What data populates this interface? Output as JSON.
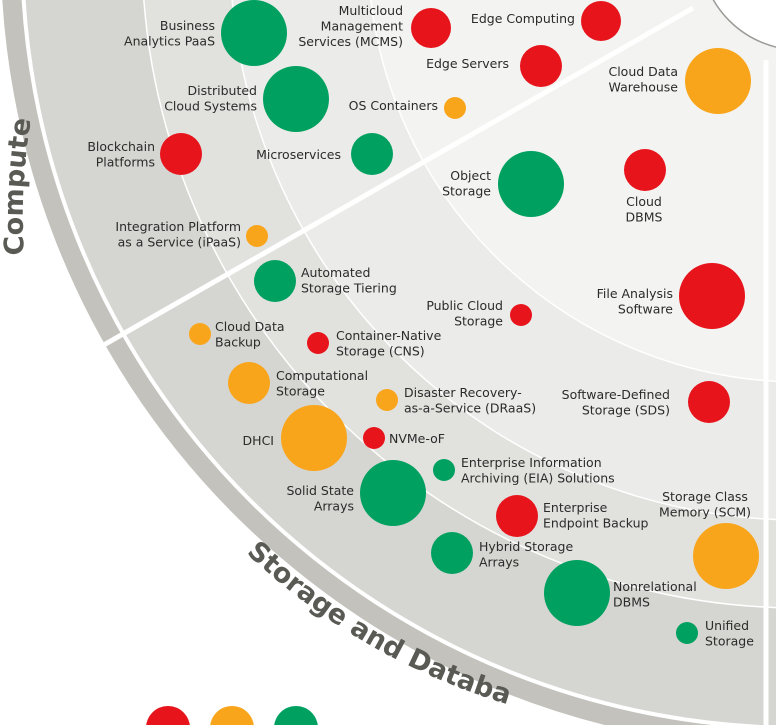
{
  "colors": {
    "red": "#e8141c",
    "orange": "#f9a51b",
    "green": "#00a160",
    "ring_outer": "#c3c2bd",
    "ring_2": "#d5d5d1",
    "ring_3": "#e1e1de",
    "ring_4": "#ebebe9",
    "ring_5": "#f3f3f1",
    "divider": "#ffffff"
  },
  "sectors": {
    "storage": "Storage and Database",
    "compute": "Compute"
  },
  "technologies": [
    {
      "id": "business-analytics-paas",
      "lines": [
        "Business",
        "Analytics PaaS"
      ],
      "color": "green"
    },
    {
      "id": "multicloud-management-services",
      "lines": [
        "Multicloud",
        "Management",
        "Services (MCMS)"
      ],
      "color": "red"
    },
    {
      "id": "edge-computing",
      "lines": [
        "Edge Computing"
      ],
      "color": "red"
    },
    {
      "id": "edge-servers",
      "lines": [
        "Edge Servers"
      ],
      "color": "red"
    },
    {
      "id": "cloud-data-warehouse",
      "lines": [
        "Cloud Data",
        "Warehouse"
      ],
      "color": "orange"
    },
    {
      "id": "distributed-cloud-systems",
      "lines": [
        "Distributed",
        "Cloud Systems"
      ],
      "color": "green"
    },
    {
      "id": "os-containers",
      "lines": [
        "OS Containers"
      ],
      "color": "orange"
    },
    {
      "id": "blockchain-platforms",
      "lines": [
        "Blockchain",
        "Platforms"
      ],
      "color": "red"
    },
    {
      "id": "microservices",
      "lines": [
        "Microservices"
      ],
      "color": "green"
    },
    {
      "id": "object-storage",
      "lines": [
        "Object",
        "Storage"
      ],
      "color": "green"
    },
    {
      "id": "cloud-dbms",
      "lines": [
        "Cloud",
        "DBMS"
      ],
      "color": "red"
    },
    {
      "id": "ipaas",
      "lines": [
        "Integration Platform",
        "as a Service (iPaaS)"
      ],
      "color": "orange"
    },
    {
      "id": "automated-storage-tiering",
      "lines": [
        "Automated",
        "Storage Tiering"
      ],
      "color": "green"
    },
    {
      "id": "file-analysis-software",
      "lines": [
        "File Analysis",
        "Software"
      ],
      "color": "red"
    },
    {
      "id": "public-cloud-storage",
      "lines": [
        "Public Cloud",
        "Storage"
      ],
      "color": "red"
    },
    {
      "id": "cloud-data-backup",
      "lines": [
        "Cloud Data",
        "Backup"
      ],
      "color": "orange"
    },
    {
      "id": "container-native-storage",
      "lines": [
        "Container-Native",
        "Storage (CNS)"
      ],
      "color": "red"
    },
    {
      "id": "computational-storage",
      "lines": [
        "Computational",
        "Storage"
      ],
      "color": "orange"
    },
    {
      "id": "draas",
      "lines": [
        "Disaster Recovery-",
        "as-a-Service (DRaaS)"
      ],
      "color": "orange"
    },
    {
      "id": "software-defined-storage",
      "lines": [
        "Software-Defined",
        "Storage (SDS)"
      ],
      "color": "red"
    },
    {
      "id": "dhci",
      "lines": [
        "DHCI"
      ],
      "color": "orange"
    },
    {
      "id": "nvme-of",
      "lines": [
        "NVMe-oF"
      ],
      "color": "red"
    },
    {
      "id": "eia-solutions",
      "lines": [
        "Enterprise Information",
        "Archiving (EIA) Solutions"
      ],
      "color": "green"
    },
    {
      "id": "solid-state-arrays",
      "lines": [
        "Solid State",
        "Arrays"
      ],
      "color": "green"
    },
    {
      "id": "enterprise-endpoint-backup",
      "lines": [
        "Enterprise",
        "Endpoint Backup"
      ],
      "color": "red"
    },
    {
      "id": "storage-class-memory",
      "lines": [
        "Storage Class",
        "Memory (SCM)"
      ],
      "color": "orange"
    },
    {
      "id": "hybrid-storage-arrays",
      "lines": [
        "Hybrid Storage",
        "Arrays"
      ],
      "color": "green"
    },
    {
      "id": "nonrelational-dbms",
      "lines": [
        "Nonrelational",
        "DBMS"
      ],
      "color": "green"
    },
    {
      "id": "unified-storage",
      "lines": [
        "Unified",
        "Storage"
      ],
      "color": "green"
    }
  ],
  "legend_dots": [
    {
      "id": "legend-dot-red",
      "color": "red"
    },
    {
      "id": "legend-dot-orange",
      "color": "orange"
    },
    {
      "id": "legend-dot-green",
      "color": "green"
    }
  ]
}
